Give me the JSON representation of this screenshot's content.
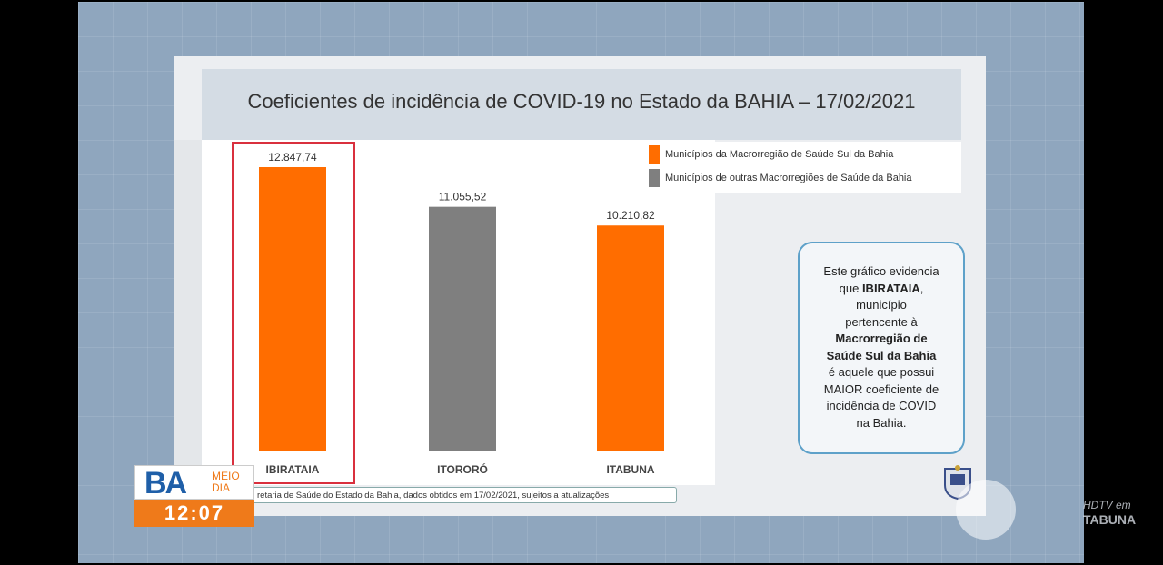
{
  "title": "Coeficientes de incidência de COVID-19 no Estado da BAHIA – 17/02/2021",
  "legend": [
    {
      "label": "Municípios da Macrorregião de Saúde Sul da Bahia",
      "color": "#ff6d00"
    },
    {
      "label": "Municípios de outras Macrorregiões de Saúde da Bahia",
      "color": "#7f7f7f"
    }
  ],
  "info_box": {
    "line1": "Este gráfico evidencia",
    "line2_pre": "que ",
    "line2_bold": "IBIRATAIA",
    "line2_post": ",",
    "line3": "município",
    "line4": "pertencente à",
    "line5_bold": "Macrorregião de",
    "line6_bold": "Saúde Sul da Bahia",
    "line7": "é aquele que possui",
    "line8": "MAIOR coeficiente de",
    "line9": "incidência de COVID",
    "line10": "na Bahia."
  },
  "source": "retaria de Saúde do Estado da Bahia, dados obtidos em 17/02/2021, sujeitos a atualizações",
  "tv": {
    "logo_ba": "BA",
    "logo_meio": "MEIO",
    "logo_dia": "DIA",
    "time": "12:07",
    "hdtv": "HDTV em",
    "city": "TABUNA"
  },
  "chart_data": {
    "type": "bar",
    "title": "Coeficientes de incidência de COVID-19 no Estado da BAHIA – 17/02/2021",
    "categories": [
      "IBIRATAIA",
      "ITORORÓ",
      "ITABUNA"
    ],
    "values": [
      12847.74,
      11055.52,
      10210.82
    ],
    "value_labels": [
      "12.847,74",
      "11.055,52",
      "10.210,82"
    ],
    "bar_colors": [
      "#ff6d00",
      "#7f7f7f",
      "#ff6d00"
    ],
    "ylim": [
      0,
      12847.74
    ],
    "highlighted": "IBIRATAIA",
    "grid": false,
    "legend_position": "top-right"
  }
}
